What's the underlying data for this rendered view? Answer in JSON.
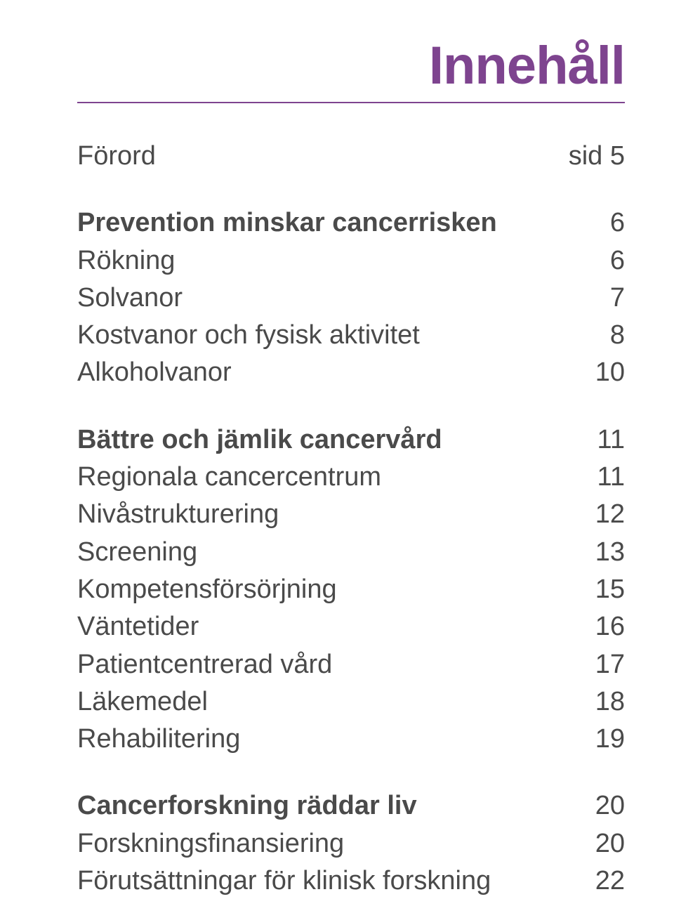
{
  "title": "Innehåll",
  "title_color": "#7e448f",
  "text_color": "#4a4a4a",
  "background_color": "#ffffff",
  "font_sizes": {
    "title": 76,
    "row": 38
  },
  "sections": [
    {
      "rows": [
        {
          "label": "Förord",
          "page": "sid 5",
          "bold": false
        }
      ]
    },
    {
      "rows": [
        {
          "label": "Prevention minskar cancerrisken",
          "page": "6",
          "bold": true
        },
        {
          "label": "Rökning",
          "page": "6",
          "bold": false
        },
        {
          "label": "Solvanor",
          "page": "7",
          "bold": false
        },
        {
          "label": "Kostvanor och fysisk aktivitet",
          "page": "8",
          "bold": false
        },
        {
          "label": "Alkoholvanor",
          "page": "10",
          "bold": false
        }
      ]
    },
    {
      "rows": [
        {
          "label": "Bättre och jämlik cancervård",
          "page": "11",
          "bold": true
        },
        {
          "label": "Regionala cancercentrum",
          "page": "11",
          "bold": false
        },
        {
          "label": "Nivåstrukturering",
          "page": "12",
          "bold": false
        },
        {
          "label": "Screening",
          "page": "13",
          "bold": false
        },
        {
          "label": "Kompetensförsörjning",
          "page": "15",
          "bold": false
        },
        {
          "label": "Väntetider",
          "page": "16",
          "bold": false
        },
        {
          "label": "Patientcentrerad vård",
          "page": "17",
          "bold": false
        },
        {
          "label": "Läkemedel",
          "page": "18",
          "bold": false
        },
        {
          "label": "Rehabilitering",
          "page": "19",
          "bold": false
        }
      ]
    },
    {
      "rows": [
        {
          "label": "Cancerforskning räddar liv",
          "page": "20",
          "bold": true
        },
        {
          "label": "Forskningsfinansiering",
          "page": "20",
          "bold": false
        },
        {
          "label": "Förutsättningar för klinisk forskning",
          "page": "22",
          "bold": false
        }
      ]
    }
  ]
}
